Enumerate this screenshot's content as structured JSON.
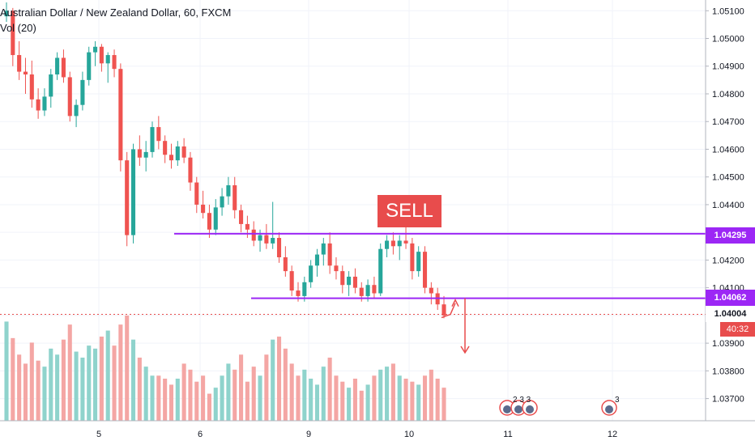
{
  "legend": {
    "title": "Australian Dollar / New Zealand Dollar, 60, FXCM",
    "volume": "Vol (20)"
  },
  "annotations": {
    "sell_label": "SELL",
    "resistance_price": "1.04295",
    "support_price": "1.04062",
    "last_price": "1.04004",
    "countdown": "40:32"
  },
  "events": [
    {
      "x_label": "11",
      "text": "2 3 3"
    },
    {
      "x_label": "12",
      "text": "3"
    }
  ],
  "colors": {
    "up": "#26a69a",
    "down": "#ef5350",
    "up_volume": "#8fd3cc",
    "down_volume": "#f4a6a4",
    "level_line": "#9c27f5",
    "last_line": "#e84c4c",
    "arrow": "#e84c4c"
  },
  "chart_data": {
    "type": "candlestick",
    "title": "Australian Dollar / New Zealand Dollar, 60, FXCM",
    "y_ticks": [
      "1.05100",
      "1.05000",
      "1.04900",
      "1.04800",
      "1.04700",
      "1.04600",
      "1.04500",
      "1.04400",
      "1.04300",
      "1.04200",
      "1.04100",
      "1.04000",
      "1.03900",
      "1.03800",
      "1.03700"
    ],
    "ylim": [
      1.0362,
      1.0513
    ],
    "x_ticks": [
      "5",
      "6",
      "9",
      "10",
      "11",
      "12"
    ],
    "levels": {
      "resistance": 1.04295,
      "support": 1.04062,
      "last": 1.04004
    },
    "candles": [
      [
        1.0508,
        1.0513,
        1.0506,
        1.051
      ],
      [
        1.051,
        1.0511,
        1.049,
        1.0494
      ],
      [
        1.0494,
        1.0499,
        1.0485,
        1.0488
      ],
      [
        1.0488,
        1.0493,
        1.048,
        1.0487
      ],
      [
        1.0487,
        1.0492,
        1.0475,
        1.0478
      ],
      [
        1.0478,
        1.0482,
        1.0471,
        1.0474
      ],
      [
        1.0474,
        1.0482,
        1.0472,
        1.0479
      ],
      [
        1.0479,
        1.0489,
        1.0475,
        1.0487
      ],
      [
        1.0487,
        1.0495,
        1.0485,
        1.0493
      ],
      [
        1.0493,
        1.0496,
        1.0484,
        1.0486
      ],
      [
        1.0486,
        1.0488,
        1.047,
        1.0472
      ],
      [
        1.0472,
        1.0478,
        1.0468,
        1.0476
      ],
      [
        1.0476,
        1.0488,
        1.0474,
        1.0485
      ],
      [
        1.0485,
        1.0497,
        1.0483,
        1.0495
      ],
      [
        1.0495,
        1.0499,
        1.049,
        1.0497
      ],
      [
        1.0497,
        1.0498,
        1.0488,
        1.0491
      ],
      [
        1.0491,
        1.0495,
        1.0484,
        1.0494
      ],
      [
        1.0494,
        1.0496,
        1.0486,
        1.0489
      ],
      [
        1.0489,
        1.0491,
        1.0452,
        1.0456
      ],
      [
        1.0456,
        1.0459,
        1.0425,
        1.0429
      ],
      [
        1.0429,
        1.0462,
        1.0426,
        1.046
      ],
      [
        1.046,
        1.0465,
        1.0454,
        1.0457
      ],
      [
        1.0457,
        1.0463,
        1.0452,
        1.0459
      ],
      [
        1.0459,
        1.047,
        1.0457,
        1.0468
      ],
      [
        1.0468,
        1.0472,
        1.046,
        1.0463
      ],
      [
        1.0463,
        1.0465,
        1.0455,
        1.0458
      ],
      [
        1.0458,
        1.0462,
        1.0453,
        1.0456
      ],
      [
        1.0456,
        1.0463,
        1.0454,
        1.0461
      ],
      [
        1.0461,
        1.0464,
        1.0455,
        1.0457
      ],
      [
        1.0457,
        1.0459,
        1.0445,
        1.0448
      ],
      [
        1.0448,
        1.045,
        1.0437,
        1.044
      ],
      [
        1.044,
        1.0445,
        1.0435,
        1.0437
      ],
      [
        1.0437,
        1.044,
        1.0428,
        1.0431
      ],
      [
        1.0431,
        1.0442,
        1.0429,
        1.0439
      ],
      [
        1.0439,
        1.0446,
        1.0436,
        1.0443
      ],
      [
        1.0443,
        1.045,
        1.044,
        1.0447
      ],
      [
        1.0447,
        1.045,
        1.0435,
        1.0438
      ],
      [
        1.0438,
        1.044,
        1.043,
        1.0433
      ],
      [
        1.0433,
        1.0436,
        1.0428,
        1.0431
      ],
      [
        1.0431,
        1.0434,
        1.0425,
        1.0427
      ],
      [
        1.0427,
        1.0431,
        1.0423,
        1.0429
      ],
      [
        1.0429,
        1.0433,
        1.0424,
        1.0426
      ],
      [
        1.0426,
        1.0441,
        1.0424,
        1.0428
      ],
      [
        1.0428,
        1.043,
        1.0419,
        1.0421
      ],
      [
        1.0421,
        1.0425,
        1.0414,
        1.0416
      ],
      [
        1.0416,
        1.0418,
        1.0407,
        1.0409
      ],
      [
        1.0409,
        1.0412,
        1.0405,
        1.0407
      ],
      [
        1.0407,
        1.0414,
        1.0405,
        1.0412
      ],
      [
        1.0412,
        1.042,
        1.041,
        1.0418
      ],
      [
        1.0418,
        1.0424,
        1.0414,
        1.0422
      ],
      [
        1.0422,
        1.0428,
        1.0418,
        1.0426
      ],
      [
        1.0426,
        1.043,
        1.0415,
        1.0418
      ],
      [
        1.0418,
        1.0421,
        1.0413,
        1.0416
      ],
      [
        1.0416,
        1.0418,
        1.0408,
        1.0411
      ],
      [
        1.0411,
        1.0416,
        1.0407,
        1.0414
      ],
      [
        1.0414,
        1.0417,
        1.0408,
        1.041
      ],
      [
        1.041,
        1.0412,
        1.0405,
        1.0407
      ],
      [
        1.0407,
        1.0413,
        1.0405,
        1.0411
      ],
      [
        1.0411,
        1.0414,
        1.0406,
        1.0408
      ],
      [
        1.0408,
        1.0426,
        1.0407,
        1.0424
      ],
      [
        1.0424,
        1.0429,
        1.0421,
        1.0427
      ],
      [
        1.0427,
        1.043,
        1.0422,
        1.0425
      ],
      [
        1.0425,
        1.0429,
        1.042,
        1.0427
      ],
      [
        1.0427,
        1.0433,
        1.0424,
        1.0426
      ],
      [
        1.0426,
        1.0428,
        1.0413,
        1.0416
      ],
      [
        1.0416,
        1.0425,
        1.0414,
        1.0423
      ],
      [
        1.0423,
        1.0425,
        1.0408,
        1.041
      ],
      [
        1.041,
        1.0412,
        1.0404,
        1.0408
      ],
      [
        1.0408,
        1.041,
        1.0402,
        1.0404
      ],
      [
        1.0404,
        1.0407,
        1.0399,
        1.04
      ]
    ],
    "volumes": [
      66,
      55,
      44,
      38,
      52,
      40,
      36,
      48,
      44,
      54,
      64,
      46,
      42,
      50,
      48,
      56,
      60,
      50,
      64,
      70,
      54,
      42,
      36,
      30,
      30,
      28,
      24,
      28,
      38,
      34,
      26,
      30,
      18,
      22,
      30,
      38,
      34,
      44,
      26,
      36,
      30,
      44,
      54,
      56,
      48,
      38,
      30,
      34,
      28,
      24,
      36,
      42,
      30,
      26,
      22,
      28,
      20,
      24,
      30,
      34,
      36,
      38,
      30,
      28,
      26,
      24,
      30,
      34,
      28,
      22
    ]
  }
}
